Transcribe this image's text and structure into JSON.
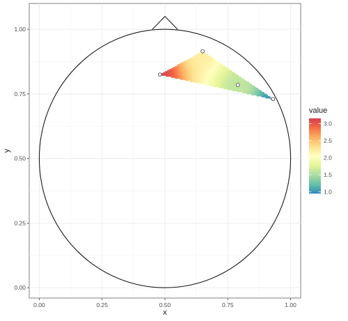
{
  "chart_data": {
    "type": "scatter",
    "xlabel": "x",
    "ylabel": "y",
    "xlim": [
      -0.04,
      1.04
    ],
    "ylim": [
      -0.04,
      1.1
    ],
    "grid": true,
    "x_ticks": [
      0.0,
      0.25,
      0.5,
      0.75,
      1.0
    ],
    "x_tick_labels": [
      "0.00",
      "0.25",
      "0.50",
      "0.75",
      "1.00"
    ],
    "y_ticks": [
      0.0,
      0.25,
      0.5,
      0.75,
      1.0
    ],
    "y_tick_labels": [
      "0.00",
      "0.25",
      "0.50",
      "0.75",
      "1.00"
    ],
    "head_outline": {
      "circle": {
        "cx": 0.5,
        "cy": 0.5,
        "r": 0.5
      },
      "nose": [
        [
          0.45,
          1.0
        ],
        [
          0.5,
          1.05
        ],
        [
          0.55,
          1.0
        ]
      ]
    },
    "points": [
      {
        "x": 0.48,
        "y": 0.825,
        "value": 3.1
      },
      {
        "x": 0.65,
        "y": 0.915,
        "value": 2.2
      },
      {
        "x": 0.79,
        "y": 0.785,
        "value": 1.6
      },
      {
        "x": 0.93,
        "y": 0.73,
        "value": 1.0
      }
    ],
    "legend": {
      "title": "value",
      "position": "right",
      "min": 0.95,
      "max": 3.15,
      "ticks": [
        1.0,
        1.5,
        2.0,
        2.5,
        3.0
      ],
      "tick_labels": [
        "1.0",
        "1.5",
        "2.0",
        "2.5",
        "3.0"
      ],
      "palette": [
        "#3288bd",
        "#66c2a5",
        "#abdda4",
        "#e6f598",
        "#ffffbf",
        "#fee08b",
        "#fdae61",
        "#f46d43",
        "#d53e4f"
      ]
    }
  }
}
